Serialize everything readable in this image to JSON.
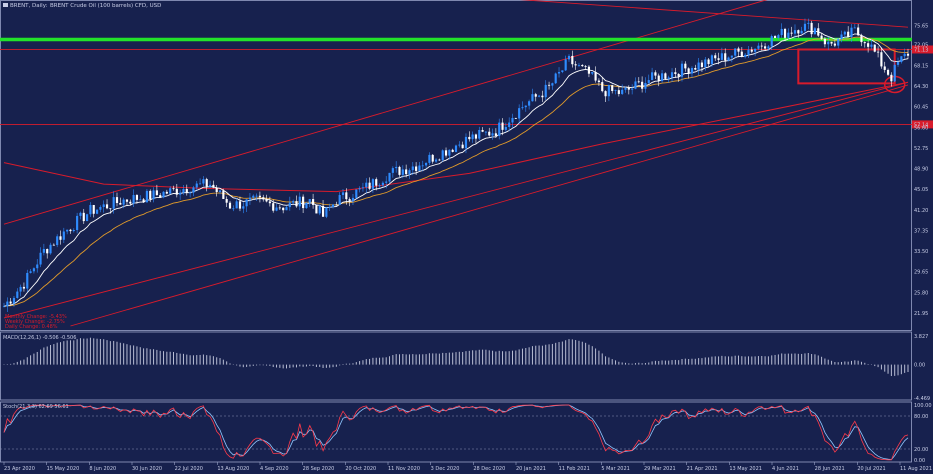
{
  "header": {
    "symbol": "BRENT, Daily:",
    "description": "BRENT Crude Oil (100 barrels) CFD, USD"
  },
  "colors": {
    "background": "#17214e",
    "bull_candle": "#2f8cff",
    "bear_candle": "#ffffff",
    "channel_line": "#d81b2b",
    "green_line": "#22e32a",
    "ma_fast": "#ffffff",
    "ma_slow": "#e09a2a",
    "stoch_k": "#ff3a4a",
    "stoch_d": "#8fc7ff"
  },
  "chart_data": [
    {
      "type": "candlestick",
      "title": "BRENT, Daily: BRENT Crude Oil (100 barrels) CFD, USD",
      "y_ticks": [
        "75.65",
        "72.05",
        "68.15",
        "64.30",
        "60.45",
        "56.60",
        "52.75",
        "48.90",
        "45.05",
        "41.20",
        "37.35",
        "33.50",
        "29.65",
        "25.80",
        "21.95"
      ],
      "x_ticks": [
        "23 Apr 2020",
        "15 May 2020",
        "8 Jun 2020",
        "30 Jun 2020",
        "22 Jul 2020",
        "13 Aug 2020",
        "4 Sep 2020",
        "28 Sep 2020",
        "20 Oct 2020",
        "11 Nov 2020",
        "3 Dec 2020",
        "28 Dec 2020",
        "20 Jan 2021",
        "11 Feb 2021",
        "5 Mar 2021",
        "29 Mar 2021",
        "21 Apr 2021",
        "13 May 2021",
        "4 Jun 2021",
        "28 Jun 2021",
        "20 Jul 2021",
        "11 Aug 2021"
      ],
      "ylim": [
        19.5,
        78.5
      ],
      "price_boxes": [
        "71.13",
        "57.14"
      ],
      "info_lines": [
        "Monthly Change: -5.43%",
        "Weekly Change: -2.75%",
        "Daily Change: 0.48%"
      ],
      "anchors": [
        [
          0,
          23.2
        ],
        [
          6,
          27.5
        ],
        [
          12,
          33.5
        ],
        [
          18,
          37.0
        ],
        [
          26,
          41.0
        ],
        [
          36,
          43.0
        ],
        [
          46,
          44.0
        ],
        [
          56,
          45.5
        ],
        [
          62,
          46.0
        ],
        [
          68,
          42.0
        ],
        [
          76,
          42.8
        ],
        [
          84,
          41.8
        ],
        [
          92,
          43.0
        ],
        [
          96,
          40.0
        ],
        [
          100,
          43.0
        ],
        [
          108,
          45.0
        ],
        [
          116,
          48.0
        ],
        [
          124,
          49.5
        ],
        [
          132,
          52.0
        ],
        [
          140,
          54.5
        ],
        [
          148,
          56.0
        ],
        [
          156,
          60.5
        ],
        [
          164,
          64.0
        ],
        [
          170,
          69.0
        ],
        [
          176,
          66.5
        ],
        [
          180,
          63.5
        ],
        [
          186,
          63.0
        ],
        [
          194,
          65.5
        ],
        [
          202,
          67.0
        ],
        [
          210,
          68.5
        ],
        [
          218,
          70.0
        ],
        [
          226,
          71.5
        ],
        [
          234,
          74.0
        ],
        [
          240,
          75.5
        ],
        [
          244,
          75.0
        ],
        [
          248,
          72.0
        ],
        [
          252,
          73.0
        ],
        [
          256,
          74.5
        ],
        [
          260,
          72.5
        ],
        [
          264,
          68.5
        ],
        [
          267,
          66.0
        ],
        [
          269,
          68.5
        ],
        [
          272,
          70.5
        ]
      ],
      "overlays": {
        "green_level": 73.0,
        "red_levels": [
          71.13,
          57.14
        ],
        "highlight_box": [
          64.8,
          71.13
        ],
        "curve_ma_long": [
          [
            0,
            50.0
          ],
          [
            30,
            46.0
          ],
          [
            60,
            45.2
          ],
          [
            100,
            44.6
          ],
          [
            140,
            48.0
          ],
          [
            180,
            53.5
          ],
          [
            220,
            58.5
          ],
          [
            260,
            63.5
          ],
          [
            272,
            65.0
          ]
        ],
        "channel_top": [
          [
            0,
            38.5
          ],
          [
            230,
            80.5
          ]
        ],
        "channel_mid": [
          [
            0,
            21.0
          ],
          [
            272,
            65.0
          ]
        ],
        "channel_low": [
          [
            20,
            19.5
          ],
          [
            272,
            64.5
          ]
        ],
        "channel_upper_desc": [
          [
            120,
            82.0
          ],
          [
            272,
            75.3
          ]
        ]
      }
    },
    {
      "type": "histogram",
      "title": "MACD(12,26,1) -0.506 -0.506",
      "y_ticks": [
        "3.827",
        "0.00",
        "-4.469"
      ],
      "ylim": [
        -4.469,
        3.827
      ]
    },
    {
      "type": "line",
      "title": "Stoch(21,3,3) 62.69 56.61",
      "y_ticks": [
        "100.00",
        "80.00",
        "20.00",
        "0.00"
      ],
      "ylim": [
        0,
        100
      ],
      "levels": [
        80,
        20
      ]
    }
  ]
}
